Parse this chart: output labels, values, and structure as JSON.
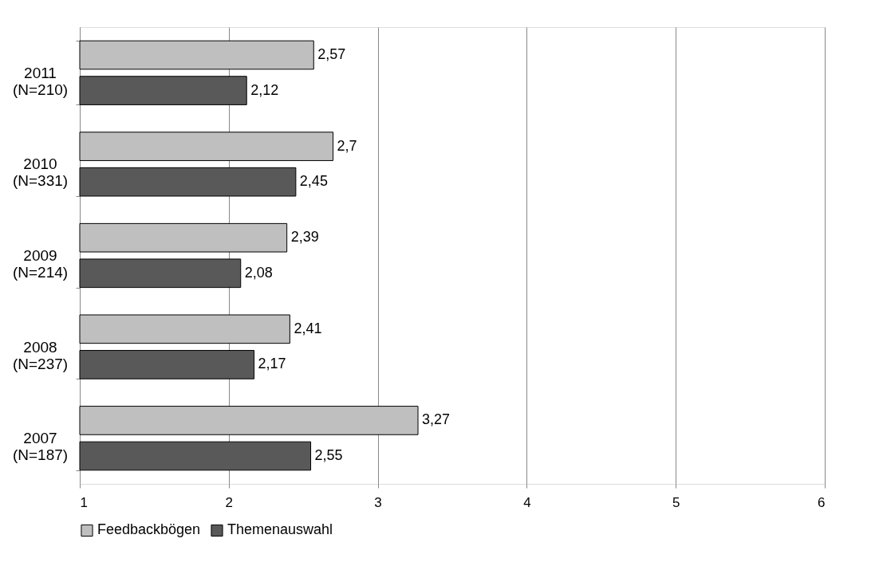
{
  "chart_data": {
    "type": "bar",
    "orientation": "horizontal",
    "categories": [
      "2011\n(N=210)",
      "2010\n(N=331)",
      "2009\n(N=214)",
      "2008\n(N=237)",
      "2007\n(N=187)"
    ],
    "series": [
      {
        "name": "Feedbackbögen",
        "color": "#bfbfbf",
        "values": [
          2.57,
          2.7,
          2.39,
          2.41,
          3.27
        ],
        "value_labels": [
          "2,57",
          "2,7",
          "2,39",
          "2,41",
          "3,27"
        ]
      },
      {
        "name": "Themenauswahl",
        "color": "#595959",
        "values": [
          2.12,
          2.45,
          2.08,
          2.17,
          2.55
        ],
        "value_labels": [
          "2,12",
          "2,45",
          "2,08",
          "2,17",
          "2,55"
        ]
      }
    ],
    "xlim": [
      1,
      6
    ],
    "xticks": [
      1,
      2,
      3,
      4,
      5,
      6
    ],
    "grid": "x",
    "legend": "bottom"
  }
}
